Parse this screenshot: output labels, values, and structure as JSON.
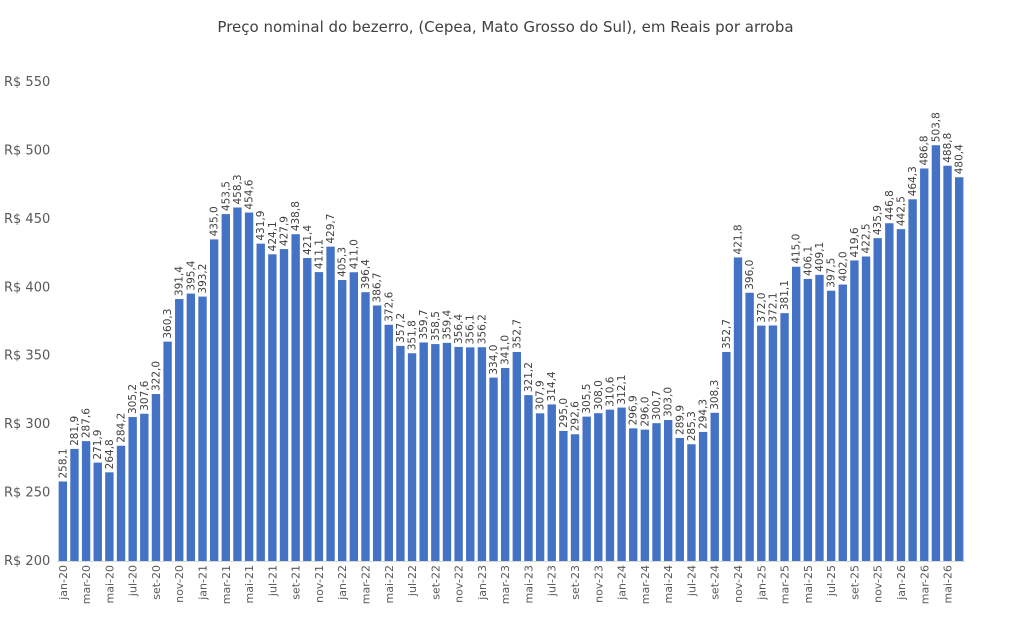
{
  "chart_data": {
    "type": "bar",
    "title": "Preço nominal do bezerro, (Cepea, Mato Grosso do Sul), em Reais por arroba",
    "xlabel": "",
    "ylabel": "",
    "ylim": [
      200,
      550
    ],
    "yticks": [
      200,
      250,
      300,
      350,
      400,
      450,
      500,
      550
    ],
    "ytick_labels": [
      "R$ 200",
      "R$ 250",
      "R$ 300",
      "R$ 350",
      "R$ 400",
      "R$ 450",
      "R$ 500",
      "R$ 550"
    ],
    "bar_color": "#4472C4",
    "grid": false,
    "categories": [
      "jan-20",
      "fev-20",
      "mar-20",
      "abr-20",
      "mai-20",
      "jun-20",
      "jul-20",
      "ago-20",
      "set-20",
      "out-20",
      "nov-20",
      "dez-20",
      "jan-21",
      "fev-21",
      "mar-21",
      "abr-21",
      "mai-21",
      "jun-21",
      "jul-21",
      "ago-21",
      "set-21",
      "out-21",
      "nov-21",
      "dez-21",
      "jan-22",
      "fev-22",
      "mar-22",
      "abr-22",
      "mai-22",
      "jun-22",
      "jul-22",
      "ago-22",
      "set-22",
      "out-22",
      "nov-22",
      "dez-22",
      "jan-23",
      "fev-23",
      "mar-23",
      "abr-23",
      "mai-23",
      "jun-23",
      "jul-23",
      "ago-23",
      "set-23",
      "out-23",
      "nov-23",
      "dez-23",
      "jan-24",
      "fev-24",
      "mar-24",
      "abr-24",
      "mai-24",
      "jun-24",
      "jul-24",
      "ago-24",
      "set-24",
      "out-24",
      "nov-24",
      "dez-24",
      "jan-25",
      "fev-25",
      "mar-25",
      "abr-25",
      "mai-25",
      "jun-25",
      "jul-25",
      "ago-25",
      "set-25",
      "out-25",
      "nov-25",
      "dez-25",
      "jan-26",
      "fev-26",
      "mar-26",
      "abr-26",
      "mai-26",
      "jun-26"
    ],
    "xtick_labels": [
      "jan-20",
      "mar-20",
      "mai-20",
      "jul-20",
      "set-20",
      "nov-20",
      "jan-21",
      "mar-21",
      "mai-21",
      "jul-21",
      "set-21",
      "nov-21",
      "jan-22",
      "mar-22",
      "mai-22",
      "jul-22",
      "set-22",
      "nov-22",
      "jan-23",
      "mar-23",
      "mai-23",
      "jul-23",
      "set-23",
      "nov-23",
      "jan-24",
      "mar-24",
      "mai-24",
      "jul-24",
      "set-24",
      "nov-24",
      "jan-25",
      "mar-25",
      "mai-25",
      "jul-25",
      "set-25",
      "nov-25",
      "jan-26",
      "mar-26",
      "mai-26"
    ],
    "values": [
      258.1,
      281.9,
      287.6,
      271.9,
      264.8,
      284.2,
      305.2,
      307.6,
      322.0,
      360.3,
      391.4,
      395.4,
      393.2,
      435.0,
      453.5,
      458.3,
      454.6,
      431.9,
      424.1,
      427.9,
      438.8,
      421.4,
      411.1,
      429.7,
      405.3,
      411.0,
      396.4,
      386.7,
      372.6,
      357.2,
      351.8,
      359.7,
      358.5,
      359.4,
      356.4,
      356.1,
      356.2,
      334.0,
      341.0,
      352.7,
      321.2,
      307.9,
      314.4,
      295.0,
      292.6,
      305.5,
      308.0,
      310.6,
      312.1,
      296.9,
      296.0,
      300.7,
      303.0,
      289.9,
      285.3,
      294.3,
      308.3,
      352.7,
      421.8,
      396.0,
      372.0,
      372.1,
      381.1,
      415.0,
      406.1,
      409.1,
      397.5,
      402.0,
      419.6,
      422.5,
      435.9,
      446.8,
      442.5,
      464.3,
      486.8,
      503.8,
      488.8,
      480.4
    ],
    "labels": [
      "258,1",
      "281,9",
      "287,6",
      "271,9",
      "264,8",
      "284,2",
      "305,2",
      "307,6",
      "322,0",
      "360,3",
      "391,4",
      "395,4",
      "393,2",
      "435,0",
      "453,5",
      "458,3",
      "454,6",
      "431,9",
      "424,1",
      "427,9",
      "438,8",
      "421,4",
      "411,1",
      "429,7",
      "405,3",
      "411,0",
      "396,4",
      "386,7",
      "372,6",
      "357,2",
      "351,8",
      "359,7",
      "358,5",
      "359,4",
      "356,4",
      "356,1",
      "356,2",
      "334,0",
      "341,0",
      "352,7",
      "321,2",
      "307,9",
      "314,4",
      "295,0",
      "292,6",
      "305,5",
      "308,0",
      "310,6",
      "312,1",
      "296,9",
      "296,0",
      "300,7",
      "303,0",
      "289,9",
      "285,3",
      "294,3",
      "308,3",
      "352,7",
      "421,8",
      "396,0",
      "372,0",
      "372,1",
      "381,1",
      "415,0",
      "406,1",
      "409,1",
      "397,5",
      "402,0",
      "419,6",
      "422,5",
      "435,9",
      "446,8",
      "442,5",
      "464,3",
      "486,8",
      "503,8",
      "488,8",
      "480,4"
    ]
  }
}
